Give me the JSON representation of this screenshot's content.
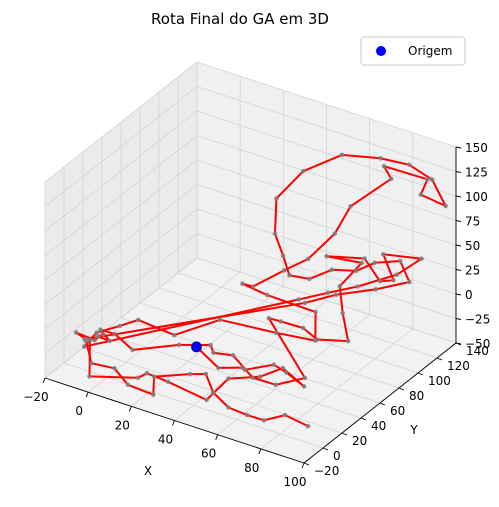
{
  "chart_data": {
    "type": "line",
    "projection": "3d",
    "title": "Rota Final do GA em 3D",
    "xlabel": "X",
    "ylabel": "Y",
    "zlabel": "",
    "xlim": [
      -20,
      100
    ],
    "ylim": [
      -20,
      140
    ],
    "zlim": [
      -50,
      150
    ],
    "x_ticks": [
      "−20",
      "0",
      "20",
      "40",
      "60",
      "80",
      "100"
    ],
    "y_ticks": [
      "−20",
      "0",
      "20",
      "40",
      "60",
      "80",
      "100",
      "120",
      "140"
    ],
    "z_ticks": [
      "−50",
      "−25",
      "0",
      "25",
      "50",
      "75",
      "100",
      "125",
      "150"
    ],
    "grid": true,
    "legend": {
      "position": "top-right",
      "entries": [
        {
          "label": "Origem",
          "color": "#0000ff",
          "marker": "circle"
        }
      ]
    },
    "route_color": "#ff0000",
    "point_color": "#808080",
    "origin": {
      "x": 37,
      "y": 10,
      "z": 0
    },
    "route": [
      [
        37,
        10,
        0
      ],
      [
        48,
        8,
        -12
      ],
      [
        58,
        10,
        -6
      ],
      [
        55,
        20,
        -18
      ],
      [
        64,
        30,
        -14
      ],
      [
        68,
        34,
        -22
      ],
      [
        78,
        30,
        -26
      ],
      [
        70,
        26,
        -10
      ],
      [
        62,
        20,
        -20
      ],
      [
        50,
        14,
        -26
      ],
      [
        46,
        0,
        -40
      ],
      [
        30,
        -4,
        -30
      ],
      [
        22,
        -8,
        -24
      ],
      [
        16,
        -4,
        -36
      ],
      [
        -2,
        -14,
        -40
      ],
      [
        -8,
        0,
        -18
      ],
      [
        -6,
        -8,
        -10
      ],
      [
        -10,
        -10,
        -4
      ],
      [
        -4,
        -4,
        -12
      ],
      [
        -2,
        0,
        -8
      ],
      [
        -6,
        4,
        -16
      ],
      [
        2,
        -2,
        -10
      ],
      [
        -4,
        2,
        -6
      ],
      [
        0,
        8,
        -12
      ],
      [
        10,
        4,
        -18
      ],
      [
        28,
        12,
        -6
      ],
      [
        40,
        18,
        -2
      ],
      [
        36,
        30,
        -22
      ],
      [
        46,
        28,
        -16
      ],
      [
        56,
        26,
        -30
      ],
      [
        64,
        32,
        -36
      ],
      [
        74,
        40,
        -28
      ],
      [
        52,
        52,
        8
      ],
      [
        54,
        60,
        0
      ],
      [
        60,
        70,
        -10
      ],
      [
        62,
        80,
        -28
      ],
      [
        72,
        90,
        -30
      ],
      [
        66,
        98,
        -12
      ],
      [
        62,
        104,
        8
      ],
      [
        66,
        118,
        24
      ],
      [
        55,
        106,
        32
      ],
      [
        70,
        112,
        36
      ],
      [
        78,
        110,
        20
      ],
      [
        86,
        106,
        30
      ],
      [
        76,
        118,
        40
      ],
      [
        92,
        122,
        44
      ],
      [
        84,
        114,
        28
      ],
      [
        72,
        100,
        18
      ],
      [
        60,
        96,
        6
      ],
      [
        50,
        88,
        -2
      ],
      [
        -8,
        -6,
        -20
      ],
      [
        -4,
        -2,
        -6
      ],
      [
        4,
        4,
        2
      ],
      [
        10,
        10,
        8
      ],
      [
        24,
        16,
        -2
      ],
      [
        40,
        28,
        16
      ],
      [
        58,
        46,
        2
      ],
      [
        70,
        60,
        -8
      ],
      [
        64,
        74,
        6
      ],
      [
        46,
        64,
        18
      ],
      [
        38,
        56,
        30
      ],
      [
        50,
        40,
        48
      ],
      [
        60,
        50,
        64
      ],
      [
        72,
        48,
        86
      ],
      [
        80,
        58,
        110
      ],
      [
        82,
        70,
        130
      ],
      [
        92,
        90,
        150
      ],
      [
        86,
        96,
        154
      ],
      [
        100,
        110,
        140
      ],
      [
        96,
        112,
        120
      ],
      [
        104,
        120,
        108
      ],
      [
        96,
        124,
        126
      ],
      [
        88,
        118,
        140
      ],
      [
        80,
        106,
        150
      ],
      [
        70,
        88,
        160
      ],
      [
        60,
        70,
        150
      ],
      [
        52,
        60,
        124
      ],
      [
        54,
        54,
        94
      ],
      [
        56,
        58,
        70
      ],
      [
        58,
        60,
        50
      ],
      [
        62,
        72,
        40
      ],
      [
        68,
        82,
        46
      ],
      [
        74,
        94,
        40
      ],
      [
        80,
        100,
        48
      ],
      [
        90,
        104,
        54
      ],
      [
        96,
        100,
        40
      ],
      [
        84,
        92,
        30
      ],
      [
        70,
        82,
        22
      ],
      [
        60,
        72,
        14
      ],
      [
        -6,
        -10,
        -8
      ],
      [
        -8,
        -4,
        -16
      ],
      [
        -2,
        -12,
        -28
      ],
      [
        6,
        -6,
        -32
      ],
      [
        14,
        -10,
        -40
      ],
      [
        24,
        -6,
        -46
      ],
      [
        20,
        4,
        -38
      ],
      [
        34,
        10,
        -30
      ],
      [
        44,
        4,
        -18
      ],
      [
        50,
        -2,
        -28
      ],
      [
        58,
        -4,
        -36
      ],
      [
        64,
        2,
        -44
      ],
      [
        70,
        6,
        -48
      ],
      [
        78,
        10,
        -40
      ],
      [
        86,
        16,
        -50
      ]
    ]
  }
}
